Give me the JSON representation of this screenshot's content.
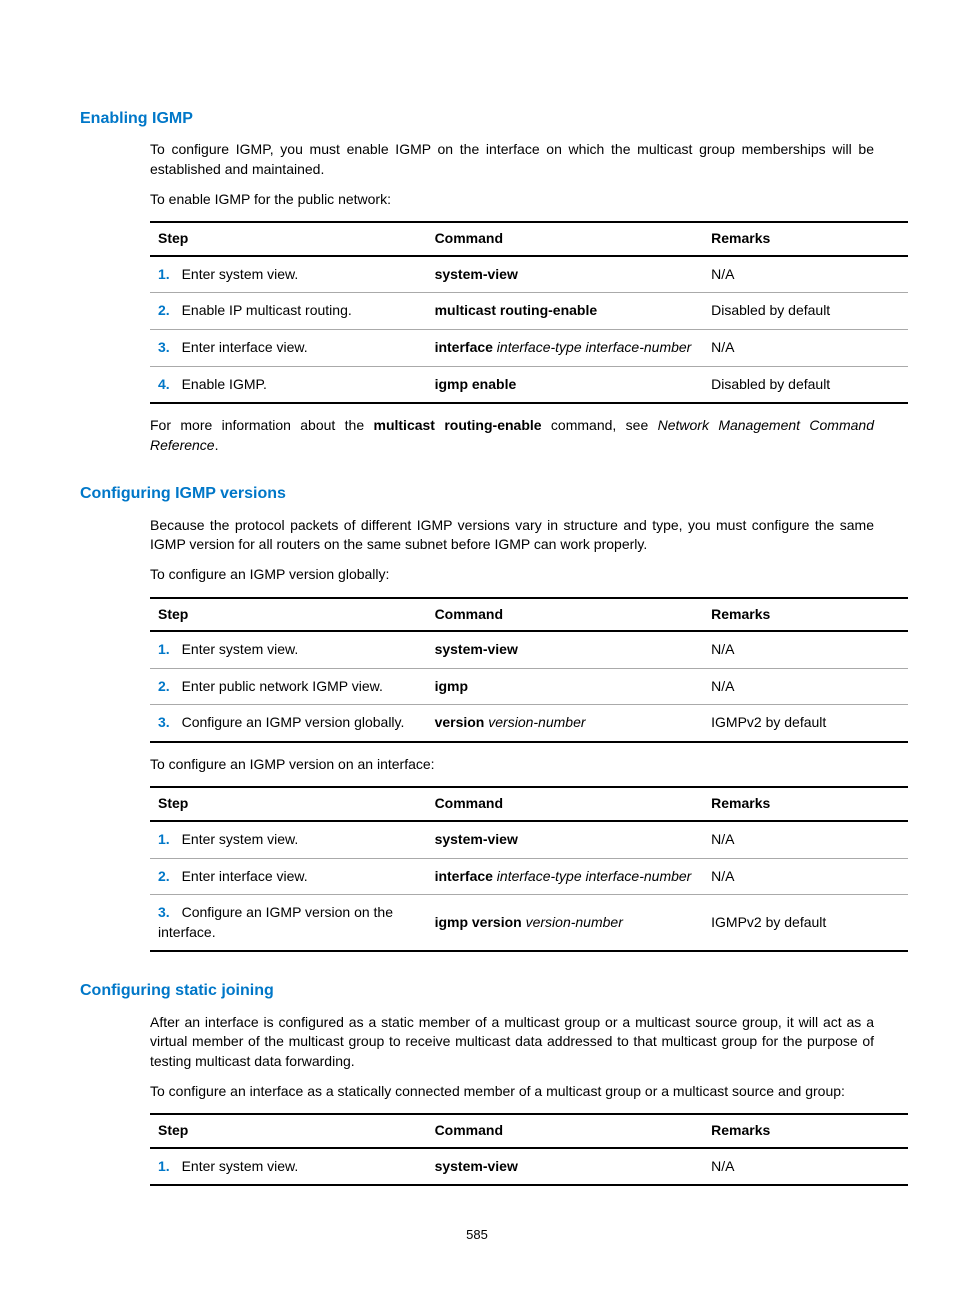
{
  "page_number": "585",
  "sections": [
    {
      "heading": "Enabling IGMP",
      "paras": [
        "To configure IGMP, you must enable IGMP on the interface on which the multicast group memberships will be established and maintained.",
        "To enable IGMP for the public network:"
      ],
      "table": {
        "headers": [
          "Step",
          "Command",
          "Remarks"
        ],
        "rows": [
          {
            "num": "1.",
            "step": "Enter system view.",
            "cmd_bold": "system-view",
            "cmd_ital": "",
            "remark": "N/A"
          },
          {
            "num": "2.",
            "step": "Enable IP multicast routing.",
            "cmd_bold": "multicast routing-enable",
            "cmd_ital": "",
            "remark": "Disabled by default"
          },
          {
            "num": "3.",
            "step": "Enter interface view.",
            "cmd_bold": "interface",
            "cmd_ital": " interface-type interface-number",
            "remark": "N/A"
          },
          {
            "num": "4.",
            "step": "Enable IGMP.",
            "cmd_bold": "igmp enable",
            "cmd_ital": "",
            "remark": "Disabled by default"
          }
        ]
      },
      "after_table": {
        "pre": "For more information about the ",
        "bold": "multicast routing-enable",
        "mid": " command, see ",
        "ital": "Network Management Command Reference",
        "post": "."
      }
    },
    {
      "heading": "Configuring IGMP versions",
      "paras": [
        "Because the protocol packets of different IGMP versions vary in structure and type, you must configure the same IGMP version for all routers on the same subnet before IGMP can work properly.",
        "To configure an IGMP version globally:"
      ],
      "table": {
        "headers": [
          "Step",
          "Command",
          "Remarks"
        ],
        "rows": [
          {
            "num": "1.",
            "step": "Enter system view.",
            "cmd_bold": "system-view",
            "cmd_ital": "",
            "remark": "N/A"
          },
          {
            "num": "2.",
            "step": "Enter public network IGMP view.",
            "cmd_bold": "igmp",
            "cmd_ital": "",
            "remark": "N/A"
          },
          {
            "num": "3.",
            "step": "Configure an IGMP version globally.",
            "cmd_bold": "version",
            "cmd_ital": " version-number",
            "remark": "IGMPv2 by default"
          }
        ]
      },
      "paras2": [
        "To configure an IGMP version on an interface:"
      ],
      "table2": {
        "headers": [
          "Step",
          "Command",
          "Remarks"
        ],
        "rows": [
          {
            "num": "1.",
            "step": "Enter system view.",
            "cmd_bold": "system-view",
            "cmd_ital": "",
            "remark": "N/A"
          },
          {
            "num": "2.",
            "step": "Enter interface view.",
            "cmd_bold": "interface",
            "cmd_ital": " interface-type interface-number",
            "remark": "N/A"
          },
          {
            "num": "3.",
            "step": "Configure an IGMP version on the interface.",
            "cmd_bold": "igmp version",
            "cmd_ital": " version-number",
            "remark": "IGMPv2 by default"
          }
        ]
      }
    },
    {
      "heading": "Configuring static joining",
      "paras": [
        "After an interface is configured as a static member of a multicast group or a multicast source group, it will act as a virtual member of the multicast group to receive multicast data addressed to that multicast group for the purpose of testing multicast data forwarding.",
        "To configure an interface as a statically connected member of a multicast group or a multicast source and group:"
      ],
      "table": {
        "headers": [
          "Step",
          "Command",
          "Remarks"
        ],
        "rows": [
          {
            "num": "1.",
            "step": "Enter system view.",
            "cmd_bold": "system-view",
            "cmd_ital": "",
            "remark": "N/A"
          }
        ]
      }
    }
  ]
}
